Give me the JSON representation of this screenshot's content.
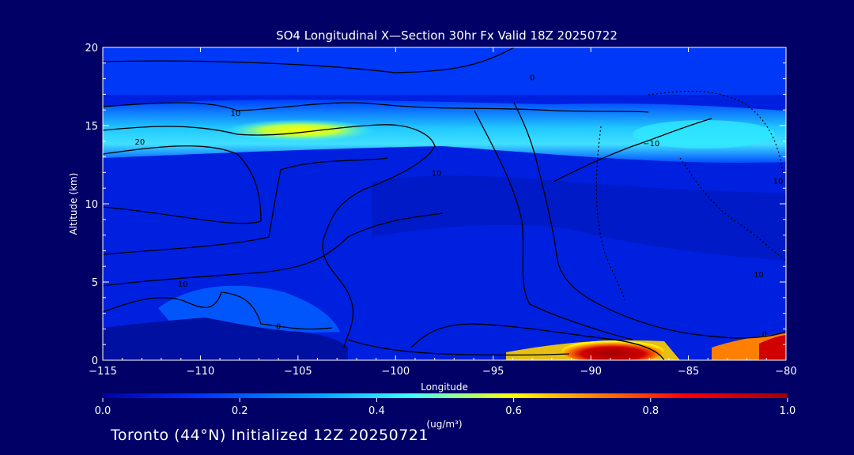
{
  "chart_data": {
    "type": "heatmap",
    "title": "SO4 Longitudinal X—Section 30hr  Fx Valid 18Z 20250722",
    "xlabel": "Longitude",
    "ylabel": "Altitude (km)",
    "xlim": [
      -115,
      -80
    ],
    "ylim": [
      0,
      20
    ],
    "x_ticks": [
      -115,
      -110,
      -105,
      -100,
      -95,
      -90,
      -85,
      -80
    ],
    "x_tick_labels": [
      "−115",
      "−110",
      "−105",
      "−100",
      "−95",
      "−90",
      "−85",
      "−80"
    ],
    "y_ticks": [
      0,
      5,
      10,
      15,
      20
    ],
    "y_tick_labels": [
      "0",
      "5",
      "10",
      "15",
      "20"
    ],
    "colorbar": {
      "min": 0.0,
      "max": 1.0,
      "ticks": [
        0.0,
        0.2,
        0.4,
        0.6,
        0.8,
        1.0
      ],
      "tick_labels": [
        "0.0",
        "0.2",
        "0.4",
        "0.6",
        "0.8",
        "1.0"
      ],
      "unit_label": "(ug/m³)",
      "colors": [
        "#0000a8",
        "#0030ff",
        "#00a8ff",
        "#40ffff",
        "#ffff00",
        "#ff8000",
        "#ff0000",
        "#a00000"
      ]
    },
    "features": [
      {
        "name": "upper-band",
        "lon": [
          -115,
          -80
        ],
        "alt": [
          13.5,
          16.0
        ],
        "value": 0.35
      },
      {
        "name": "upper-band-peak",
        "lon": [
          -107,
          -103
        ],
        "alt": [
          14.2,
          15.2
        ],
        "value": 0.6
      },
      {
        "name": "upper-band-east",
        "lon": [
          -87,
          -81
        ],
        "alt": [
          13.8,
          15.6
        ],
        "value": 0.45
      },
      {
        "name": "surface-plume",
        "lon": [
          -92,
          -87
        ],
        "alt": [
          0.2,
          1.3
        ],
        "value": 1.0
      },
      {
        "name": "surface-plume-east",
        "lon": [
          -82,
          -80
        ],
        "alt": [
          0.2,
          1.5
        ],
        "value": 0.9
      },
      {
        "name": "low-layer-west",
        "lon": [
          -114,
          -102
        ],
        "alt": [
          1.5,
          5.0
        ],
        "value": 0.2
      }
    ],
    "contour_labels": [
      {
        "text": "0",
        "lon": -93,
        "alt": 18.1
      },
      {
        "text": "10",
        "lon": -108.2,
        "alt": 15.8
      },
      {
        "text": "20",
        "lon": -113.1,
        "alt": 14.0
      },
      {
        "text": "10",
        "lon": -97.9,
        "alt": 12.0
      },
      {
        "text": "−10",
        "lon": -86.9,
        "alt": 13.9
      },
      {
        "text": "10",
        "lon": -110.9,
        "alt": 4.9
      },
      {
        "text": "0",
        "lon": -106,
        "alt": 2.2
      },
      {
        "text": "10",
        "lon": -81.4,
        "alt": 5.5
      },
      {
        "text": "0",
        "lon": -81.1,
        "alt": 1.7
      },
      {
        "text": "10",
        "lon": -80.4,
        "alt": 11.5
      }
    ]
  },
  "footer": {
    "text": "Toronto (44°N) Initialized 12Z 20250721"
  }
}
